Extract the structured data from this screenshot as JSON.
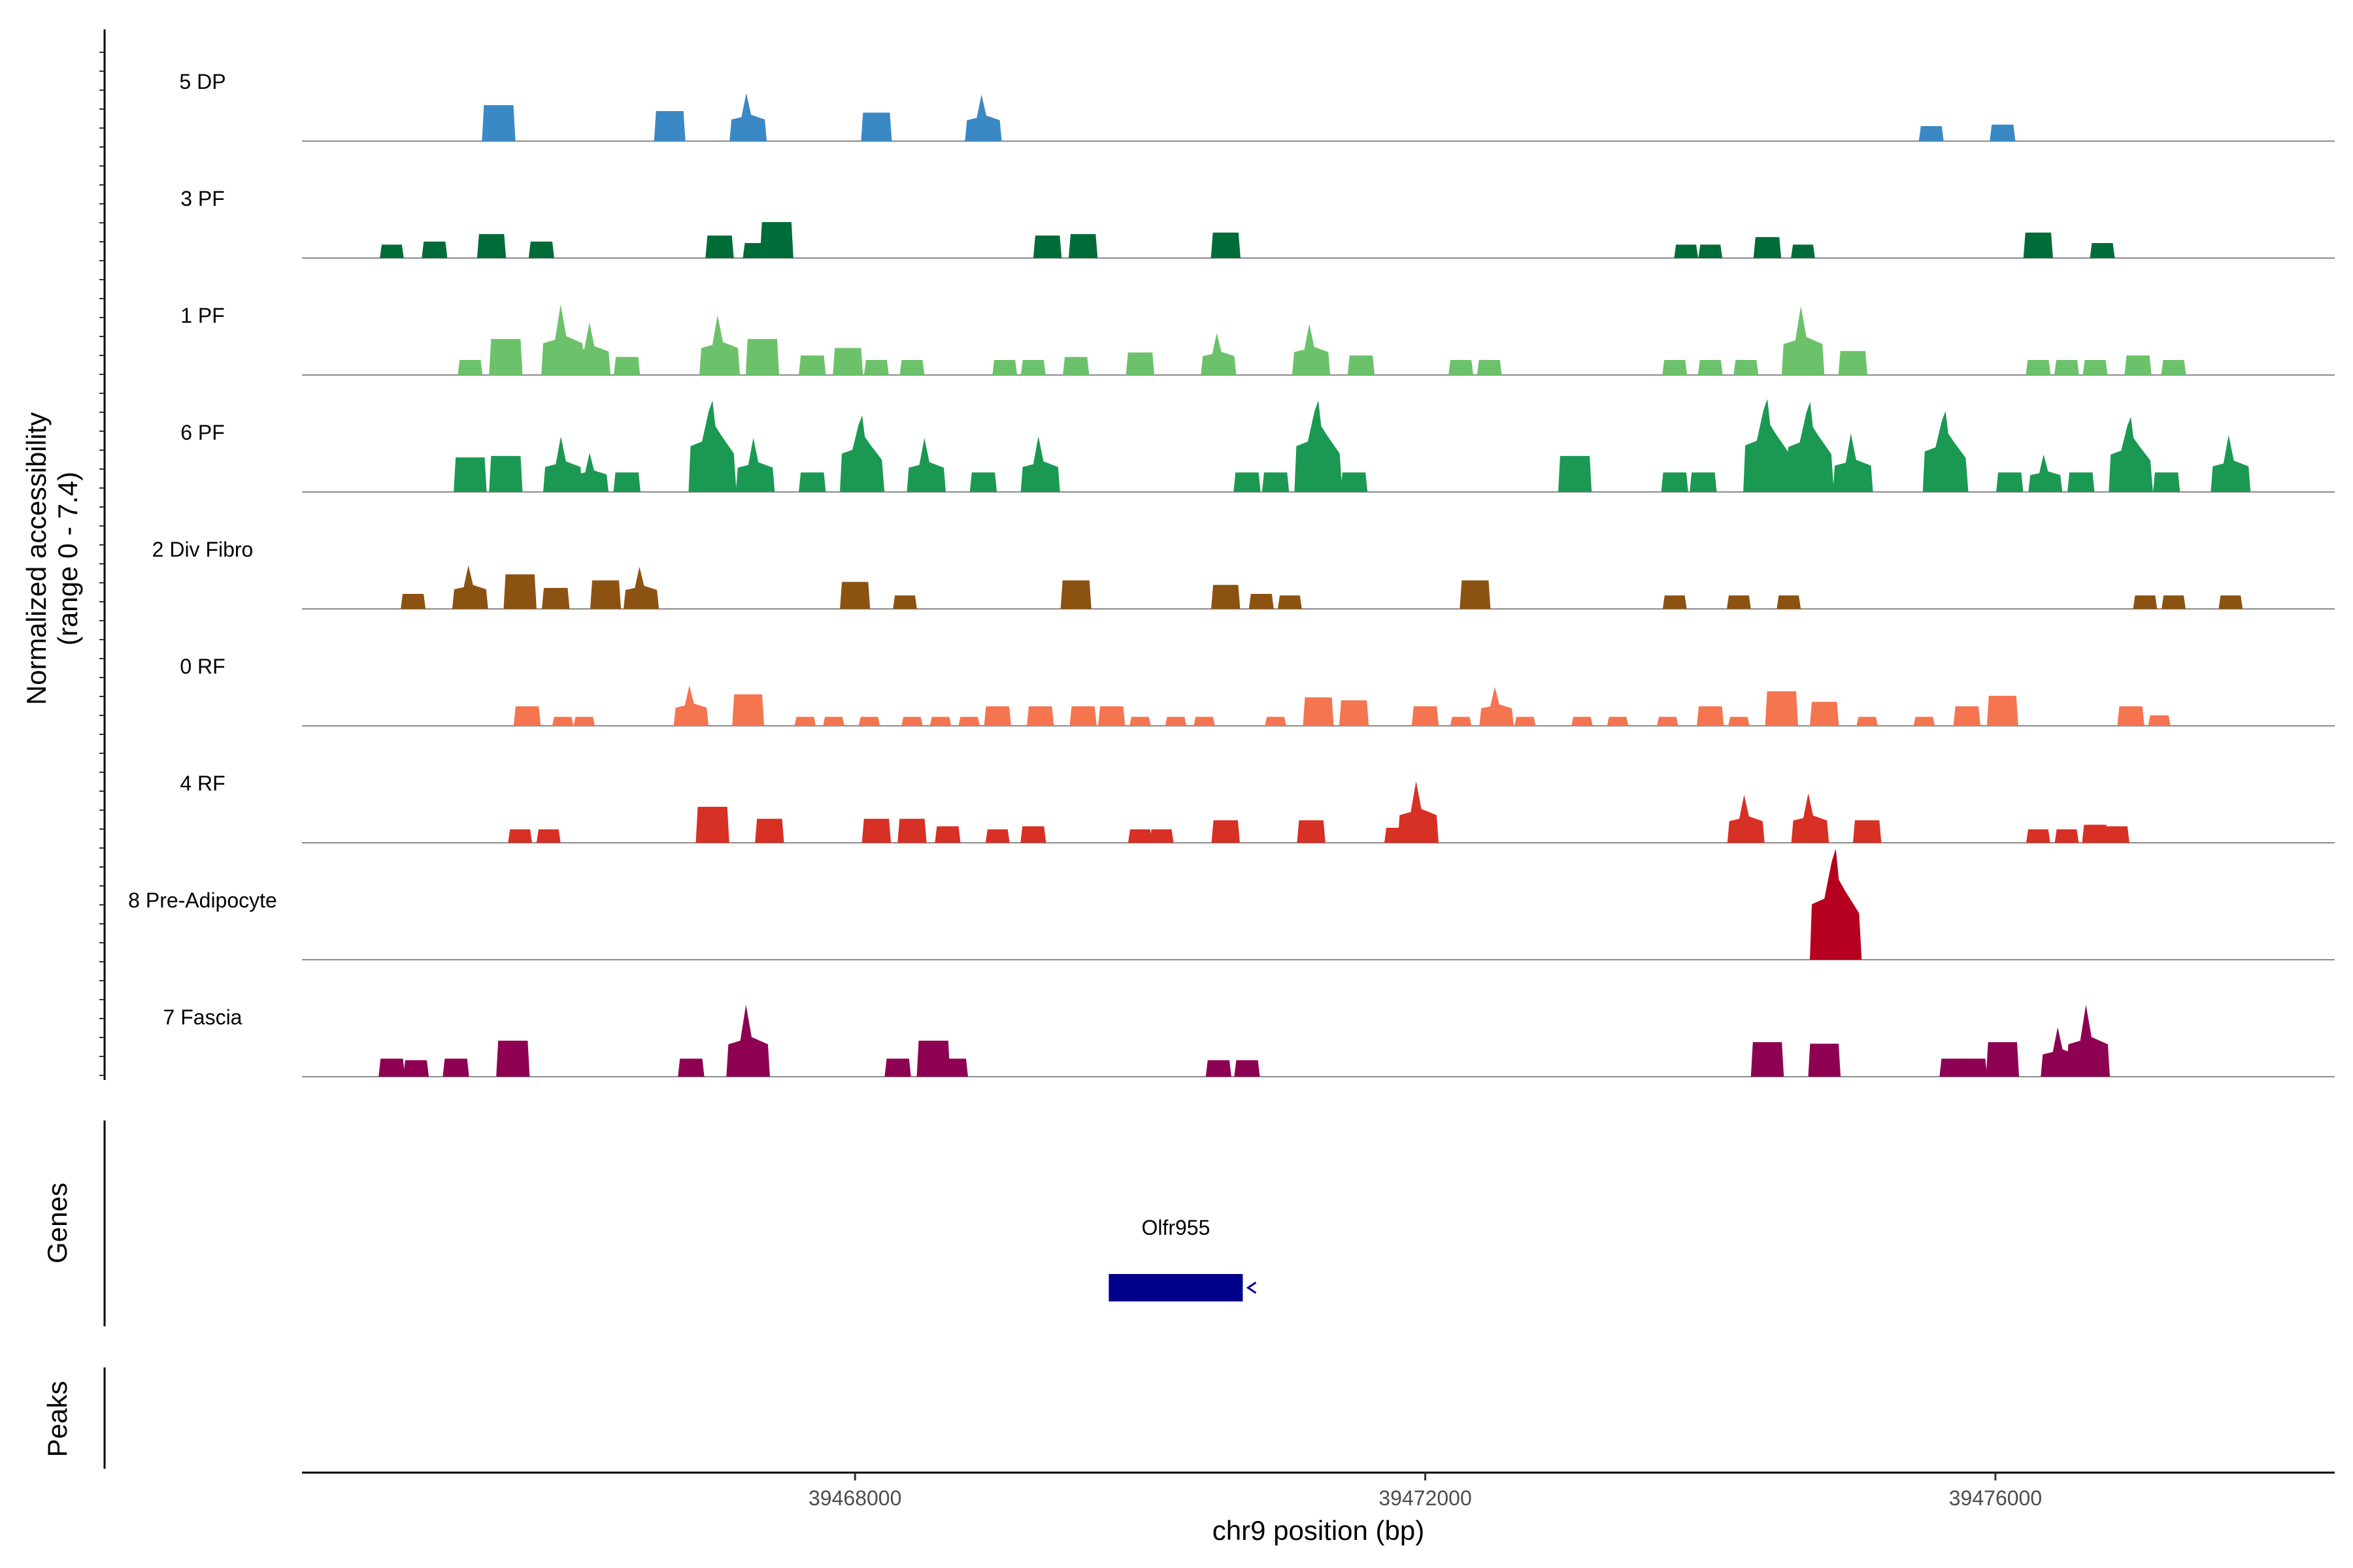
{
  "chart_data": {
    "type": "area",
    "title": "",
    "ylabel": "Normalized accessibility",
    "ylabel_range": "(range 0 - 7.4)",
    "xlabel": "chr9 position (bp)",
    "xlim": [
      39464120,
      39478380
    ],
    "ylim": [
      0,
      7.4
    ],
    "x_ticks": [
      39468000,
      39472000,
      39476000
    ],
    "x_tick_labels": [
      "39468000",
      "39472000",
      "39476000"
    ],
    "genes_label": "Genes",
    "peaks_label": "Peaks",
    "genes": [
      {
        "name": "Olfr955",
        "start": 39469780,
        "end": 39470720,
        "strand": "-",
        "color": "#00008b"
      }
    ],
    "series": [
      {
        "name": "5 DP",
        "color": "#3a89c4",
        "peaks": [
          [
            39465500,
            2.4
          ],
          [
            39466700,
            2.0
          ],
          [
            39467250,
            3.2
          ],
          [
            39468150,
            1.9
          ],
          [
            39468900,
            3.1
          ],
          [
            39475550,
            1.0
          ],
          [
            39476050,
            1.1
          ]
        ]
      },
      {
        "name": "3 PF",
        "color": "#006d38",
        "peaks": [
          [
            39464750,
            0.9
          ],
          [
            39465050,
            1.1
          ],
          [
            39465450,
            1.6
          ],
          [
            39465800,
            1.1
          ],
          [
            39467050,
            1.5
          ],
          [
            39467300,
            1.0
          ],
          [
            39467450,
            2.4
          ],
          [
            39469350,
            1.5
          ],
          [
            39469600,
            1.6
          ],
          [
            39470600,
            1.7
          ],
          [
            39473830,
            0.9
          ],
          [
            39474000,
            0.9
          ],
          [
            39474400,
            1.4
          ],
          [
            39474650,
            0.9
          ],
          [
            39476300,
            1.7
          ],
          [
            39476750,
            1.0
          ]
        ]
      },
      {
        "name": "1 PF",
        "color": "#6cc26a",
        "peaks": [
          [
            39465300,
            1.0
          ],
          [
            39465550,
            2.4
          ],
          [
            39465950,
            4.7
          ],
          [
            39466150,
            3.5
          ],
          [
            39466400,
            1.2
          ],
          [
            39467050,
            4.0
          ],
          [
            39467350,
            2.4
          ],
          [
            39467700,
            1.3
          ],
          [
            39467950,
            1.8
          ],
          [
            39468150,
            1.0
          ],
          [
            39468400,
            1.0
          ],
          [
            39469050,
            1.0
          ],
          [
            39469250,
            1.0
          ],
          [
            39469550,
            1.2
          ],
          [
            39470000,
            1.5
          ],
          [
            39470550,
            2.8
          ],
          [
            39471200,
            3.4
          ],
          [
            39471550,
            1.3
          ],
          [
            39472250,
            1.0
          ],
          [
            39472450,
            1.0
          ],
          [
            39473750,
            1.0
          ],
          [
            39474000,
            1.0
          ],
          [
            39474250,
            1.0
          ],
          [
            39474650,
            4.6
          ],
          [
            39475000,
            1.6
          ],
          [
            39476300,
            1.0
          ],
          [
            39476500,
            1.0
          ],
          [
            39476700,
            1.0
          ],
          [
            39477000,
            1.3
          ],
          [
            39477250,
            1.0
          ]
        ]
      },
      {
        "name": "6 PF",
        "color": "#1b9952",
        "peaks": [
          [
            39465300,
            2.3
          ],
          [
            39465550,
            2.4
          ],
          [
            39465950,
            3.7
          ],
          [
            39466150,
            2.6
          ],
          [
            39466400,
            1.3
          ],
          [
            39467000,
            6.1
          ],
          [
            39467300,
            3.6
          ],
          [
            39467700,
            1.3
          ],
          [
            39468050,
            5.1
          ],
          [
            39468500,
            3.6
          ],
          [
            39468900,
            1.3
          ],
          [
            39469300,
            3.7
          ],
          [
            39470750,
            1.3
          ],
          [
            39470950,
            1.3
          ],
          [
            39471250,
            6.1
          ],
          [
            39471500,
            1.3
          ],
          [
            39473050,
            2.4
          ],
          [
            39473750,
            1.3
          ],
          [
            39473950,
            1.3
          ],
          [
            39474400,
            6.2
          ],
          [
            39474700,
            6.0
          ],
          [
            39475000,
            3.9
          ],
          [
            39475650,
            5.4
          ],
          [
            39476100,
            1.3
          ],
          [
            39476350,
            2.5
          ],
          [
            39476600,
            1.3
          ],
          [
            39476950,
            5.0
          ],
          [
            39477200,
            1.3
          ],
          [
            39477650,
            3.8
          ]
        ]
      },
      {
        "name": "2 Div Fibro",
        "color": "#8c5212",
        "peaks": [
          [
            39464900,
            1.0
          ],
          [
            39465300,
            2.9
          ],
          [
            39465650,
            2.3
          ],
          [
            39465900,
            1.4
          ],
          [
            39466250,
            1.9
          ],
          [
            39466500,
            2.8
          ],
          [
            39468000,
            1.8
          ],
          [
            39468350,
            0.9
          ],
          [
            39469550,
            1.9
          ],
          [
            39470600,
            1.6
          ],
          [
            39470850,
            1.0
          ],
          [
            39471050,
            0.9
          ],
          [
            39472350,
            1.9
          ],
          [
            39473750,
            0.9
          ],
          [
            39474200,
            0.9
          ],
          [
            39474550,
            0.9
          ],
          [
            39477050,
            0.9
          ],
          [
            39477250,
            0.9
          ],
          [
            39477650,
            0.9
          ]
        ]
      },
      {
        "name": "0 RF",
        "color": "#f47550",
        "peaks": [
          [
            39465700,
            1.3
          ],
          [
            39465950,
            0.6
          ],
          [
            39466100,
            0.6
          ],
          [
            39466850,
            2.7
          ],
          [
            39467250,
            2.1
          ],
          [
            39467650,
            0.6
          ],
          [
            39467850,
            0.6
          ],
          [
            39468100,
            0.6
          ],
          [
            39468400,
            0.6
          ],
          [
            39468600,
            0.6
          ],
          [
            39468800,
            0.6
          ],
          [
            39469000,
            1.3
          ],
          [
            39469300,
            1.3
          ],
          [
            39469600,
            1.3
          ],
          [
            39469800,
            1.3
          ],
          [
            39470000,
            0.6
          ],
          [
            39470250,
            0.6
          ],
          [
            39470450,
            0.6
          ],
          [
            39470950,
            0.6
          ],
          [
            39471250,
            1.9
          ],
          [
            39471500,
            1.7
          ],
          [
            39472000,
            1.3
          ],
          [
            39472250,
            0.6
          ],
          [
            39472500,
            2.6
          ],
          [
            39472700,
            0.6
          ],
          [
            39473100,
            0.6
          ],
          [
            39473350,
            0.6
          ],
          [
            39473700,
            0.6
          ],
          [
            39474000,
            1.3
          ],
          [
            39474200,
            0.6
          ],
          [
            39474500,
            2.3
          ],
          [
            39474800,
            1.6
          ],
          [
            39475100,
            0.6
          ],
          [
            39475500,
            0.6
          ],
          [
            39475800,
            1.3
          ],
          [
            39476050,
            2.0
          ],
          [
            39476950,
            1.3
          ],
          [
            39477150,
            0.7
          ]
        ]
      },
      {
        "name": "4 RF",
        "color": "#d73025",
        "peaks": [
          [
            39465650,
            0.9
          ],
          [
            39465850,
            0.9
          ],
          [
            39467000,
            2.4
          ],
          [
            39467400,
            1.6
          ],
          [
            39468150,
            1.6
          ],
          [
            39468400,
            1.6
          ],
          [
            39468650,
            1.1
          ],
          [
            39469000,
            0.9
          ],
          [
            39469250,
            1.1
          ],
          [
            39470000,
            0.9
          ],
          [
            39470150,
            0.9
          ],
          [
            39470600,
            1.5
          ],
          [
            39471200,
            1.5
          ],
          [
            39471800,
            1.0
          ],
          [
            39471950,
            4.1
          ],
          [
            39474250,
            3.2
          ],
          [
            39474700,
            3.3
          ],
          [
            39475100,
            1.5
          ],
          [
            39476300,
            0.9
          ],
          [
            39476500,
            0.9
          ],
          [
            39476700,
            1.2
          ],
          [
            39476850,
            1.1
          ]
        ]
      },
      {
        "name": "8 Pre-Adipocyte",
        "color": "#b5001f",
        "peaks": [
          [
            39474880,
            7.4
          ]
        ]
      },
      {
        "name": "7 Fascia",
        "color": "#8e0152",
        "peaks": [
          [
            39464750,
            1.2
          ],
          [
            39464920,
            1.1
          ],
          [
            39465200,
            1.2
          ],
          [
            39465600,
            2.4
          ],
          [
            39466850,
            1.2
          ],
          [
            39467250,
            4.8
          ],
          [
            39468300,
            1.2
          ],
          [
            39468550,
            2.4
          ],
          [
            39468700,
            1.2
          ],
          [
            39470550,
            1.1
          ],
          [
            39470750,
            1.1
          ],
          [
            39474400,
            2.3
          ],
          [
            39474800,
            2.2
          ],
          [
            39475700,
            1.2
          ],
          [
            39475850,
            1.2
          ],
          [
            39476050,
            2.3
          ],
          [
            39476450,
            3.3
          ],
          [
            39476650,
            4.8
          ]
        ]
      }
    ]
  }
}
